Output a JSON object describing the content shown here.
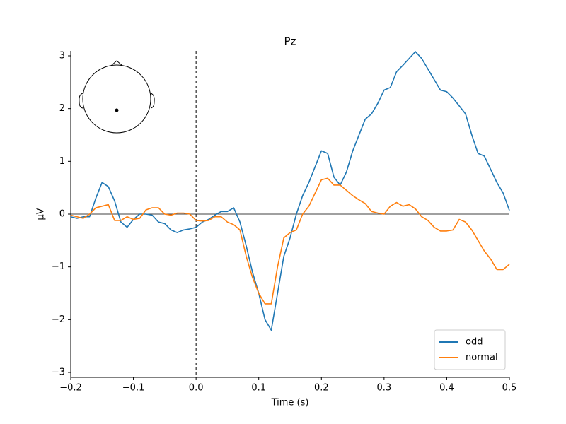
{
  "chart_data": {
    "type": "line",
    "title": "Pz",
    "xlabel": "Time (s)",
    "ylabel": "µV",
    "x": [
      -0.2,
      -0.19,
      -0.18,
      -0.17,
      -0.16,
      -0.15,
      -0.14,
      -0.13,
      -0.12,
      -0.11,
      -0.1,
      -0.09,
      -0.08,
      -0.07,
      -0.06,
      -0.05,
      -0.04,
      -0.03,
      -0.02,
      -0.01,
      0,
      0.01,
      0.02,
      0.03,
      0.04,
      0.05,
      0.06,
      0.07,
      0.08,
      0.09,
      0.1,
      0.11,
      0.12,
      0.13,
      0.14,
      0.15,
      0.16,
      0.17,
      0.18,
      0.19,
      0.2,
      0.21,
      0.22,
      0.23,
      0.24,
      0.25,
      0.26,
      0.27,
      0.28,
      0.29,
      0.3,
      0.31,
      0.32,
      0.33,
      0.34,
      0.35,
      0.36,
      0.37,
      0.38,
      0.39,
      0.4,
      0.41,
      0.42,
      0.43,
      0.44,
      0.45,
      0.46,
      0.47,
      0.48,
      0.49,
      0.5
    ],
    "series": [
      {
        "name": "odd",
        "color": "#1f77b4",
        "values": [
          -0.05,
          -0.08,
          -0.05,
          -0.05,
          0.3,
          0.6,
          0.52,
          0.25,
          -0.15,
          -0.25,
          -0.1,
          0,
          0,
          -0.02,
          -0.15,
          -0.18,
          -0.3,
          -0.35,
          -0.3,
          -0.28,
          -0.25,
          -0.15,
          -0.1,
          -0.02,
          0.05,
          0.05,
          0.12,
          -0.15,
          -0.6,
          -1.1,
          -1.5,
          -2.0,
          -2.2,
          -1.5,
          -0.8,
          -0.45,
          0,
          0.35,
          0.6,
          0.9,
          1.2,
          1.15,
          0.7,
          0.55,
          0.8,
          1.2,
          1.5,
          1.8,
          1.9,
          2.1,
          2.35,
          2.4,
          2.7,
          2.82,
          2.95,
          3.08,
          2.95,
          2.75,
          2.55,
          2.35,
          2.32,
          2.2,
          2.05,
          1.9,
          1.5,
          1.15,
          1.1,
          0.85,
          0.6,
          0.4,
          0.07
        ]
      },
      {
        "name": "normal",
        "color": "#ff7f0e",
        "values": [
          -0.02,
          -0.05,
          -0.08,
          0,
          0.12,
          0.15,
          0.18,
          -0.12,
          -0.12,
          -0.05,
          -0.1,
          -0.08,
          0.08,
          0.12,
          0.12,
          0,
          -0.02,
          0.02,
          0.02,
          0,
          -0.12,
          -0.13,
          -0.12,
          -0.05,
          -0.05,
          -0.15,
          -0.2,
          -0.3,
          -0.8,
          -1.2,
          -1.5,
          -1.7,
          -1.7,
          -1.0,
          -0.45,
          -0.35,
          -0.3,
          0,
          0.15,
          0.4,
          0.65,
          0.68,
          0.55,
          0.55,
          0.45,
          0.35,
          0.27,
          0.2,
          0.05,
          0.02,
          0,
          0.15,
          0.22,
          0.15,
          0.18,
          0.1,
          -0.05,
          -0.12,
          -0.25,
          -0.32,
          -0.32,
          -0.3,
          -0.1,
          -0.15,
          -0.3,
          -0.5,
          -0.7,
          -0.85,
          -1.05,
          -1.05,
          -0.95
        ]
      }
    ],
    "xlim": [
      -0.2,
      0.5
    ],
    "xticks": [
      {
        "value": -0.2,
        "label": "−0.2"
      },
      {
        "value": -0.1,
        "label": "−0.1"
      },
      {
        "value": 0,
        "label": "0.0"
      },
      {
        "value": 0.1,
        "label": "0.1"
      },
      {
        "value": 0.2,
        "label": "0.2"
      },
      {
        "value": 0.3,
        "label": "0.3"
      },
      {
        "value": 0.4,
        "label": "0.4"
      },
      {
        "value": 0.5,
        "label": "0.5"
      }
    ],
    "ylim": [
      -3,
      3
    ],
    "yticks": [
      {
        "value": -3,
        "label": "−3"
      },
      {
        "value": -2,
        "label": "−2"
      },
      {
        "value": -1,
        "label": "−1"
      },
      0,
      1,
      2,
      3
    ],
    "legend": "lower right"
  }
}
